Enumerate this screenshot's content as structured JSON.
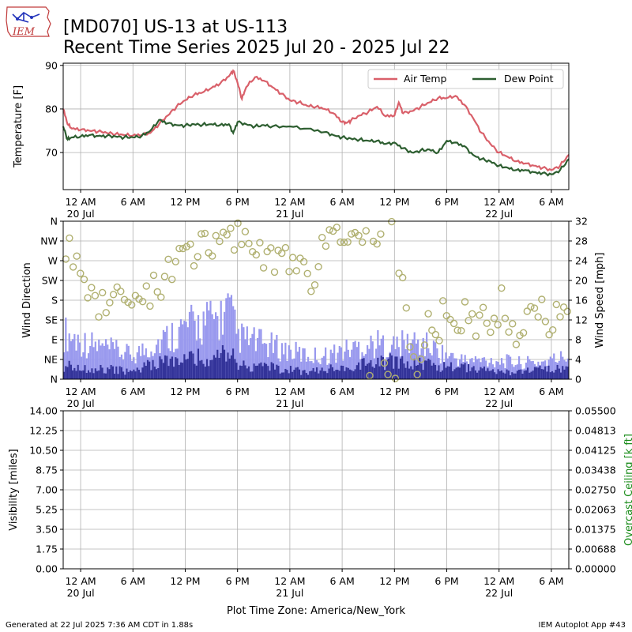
{
  "header": {
    "logo_text": "IEM",
    "title_line1": "[MD070] US-13 at US-113",
    "title_line2": "Recent Time Series 2025 Jul 20 - 2025 Jul 22"
  },
  "footer": {
    "left": "Generated at 22 Jul 2025 7:36 AM CDT in 1.88s",
    "right": "IEM Autoplot App #43"
  },
  "xaxis": {
    "label": "Plot Time Zone: America/New_York",
    "range_hours": [
      -2,
      56
    ],
    "ticks": [
      {
        "h": 0,
        "label": "12 AM",
        "date": "20 Jul"
      },
      {
        "h": 6,
        "label": "6 AM",
        "date": ""
      },
      {
        "h": 12,
        "label": "12 PM",
        "date": ""
      },
      {
        "h": 18,
        "label": "6 PM",
        "date": ""
      },
      {
        "h": 24,
        "label": "12 AM",
        "date": "21 Jul"
      },
      {
        "h": 30,
        "label": "6 AM",
        "date": ""
      },
      {
        "h": 36,
        "label": "12 PM",
        "date": ""
      },
      {
        "h": 42,
        "label": "6 PM",
        "date": ""
      },
      {
        "h": 48,
        "label": "12 AM",
        "date": "22 Jul"
      },
      {
        "h": 54,
        "label": "6 AM",
        "date": ""
      }
    ]
  },
  "chart_data": [
    {
      "type": "line",
      "ylabel": "Temperature [F]",
      "ylim": [
        61.5,
        90.5
      ],
      "yticks": [
        "70",
        "80",
        "90"
      ],
      "legend": "top-right",
      "grid": true,
      "series": [
        {
          "name": "Air Temp",
          "color": "#d9606a",
          "points": [
            [
              -2,
              80
            ],
            [
              -1.5,
              76.5
            ],
            [
              -1,
              75.5
            ],
            [
              0,
              75.2
            ],
            [
              1,
              75
            ],
            [
              2,
              74.8
            ],
            [
              3,
              74.5
            ],
            [
              4,
              74.2
            ],
            [
              5,
              74
            ],
            [
              6,
              73.9
            ],
            [
              7,
              74
            ],
            [
              8,
              74.5
            ],
            [
              9,
              76.5
            ],
            [
              10,
              78.5
            ],
            [
              11,
              80.5
            ],
            [
              12,
              82
            ],
            [
              13,
              83.2
            ],
            [
              14,
              83.8
            ],
            [
              15,
              84.8
            ],
            [
              16,
              85.8
            ],
            [
              17,
              87.5
            ],
            [
              17.5,
              88.8
            ],
            [
              18,
              86
            ],
            [
              18.5,
              82.3
            ],
            [
              19,
              85
            ],
            [
              20,
              87.3
            ],
            [
              21,
              86.5
            ],
            [
              22,
              85
            ],
            [
              23,
              83.5
            ],
            [
              24,
              82
            ],
            [
              25,
              81.5
            ],
            [
              26,
              80.7
            ],
            [
              27,
              80.5
            ],
            [
              28,
              80
            ],
            [
              29,
              79
            ],
            [
              30,
              77
            ],
            [
              30.5,
              76.8
            ],
            [
              31,
              77.3
            ],
            [
              32,
              78.5
            ],
            [
              33,
              79.3
            ],
            [
              34,
              80.5
            ],
            [
              35,
              78.3
            ],
            [
              36,
              78.5
            ],
            [
              36.5,
              81.5
            ],
            [
              37,
              79
            ],
            [
              38,
              79.5
            ],
            [
              39,
              80.5
            ],
            [
              40,
              81.5
            ],
            [
              41,
              82.5
            ],
            [
              42,
              82.5
            ],
            [
              43,
              83
            ],
            [
              44,
              81
            ],
            [
              45,
              78
            ],
            [
              46,
              74.5
            ],
            [
              47,
              72
            ],
            [
              48,
              70
            ],
            [
              49,
              69
            ],
            [
              50,
              68
            ],
            [
              51,
              67.5
            ],
            [
              52,
              67
            ],
            [
              53,
              66.5
            ],
            [
              54,
              66
            ],
            [
              55,
              67
            ],
            [
              56,
              69.5
            ]
          ]
        },
        {
          "name": "Dew Point",
          "color": "#2d5e30",
          "points": [
            [
              -2,
              76
            ],
            [
              -1.5,
              73
            ],
            [
              -1,
              73.5
            ],
            [
              0,
              73.7
            ],
            [
              1,
              74
            ],
            [
              2,
              73.8
            ],
            [
              3,
              73.8
            ],
            [
              4,
              73.7
            ],
            [
              5,
              73.5
            ],
            [
              6,
              73.5
            ],
            [
              7,
              73.8
            ],
            [
              8,
              75
            ],
            [
              9,
              77.5
            ],
            [
              10,
              76.7
            ],
            [
              11,
              76.3
            ],
            [
              12,
              76.2
            ],
            [
              13,
              76.5
            ],
            [
              14,
              76.4
            ],
            [
              15,
              76.5
            ],
            [
              16,
              76.3
            ],
            [
              17,
              76.5
            ],
            [
              17.5,
              74.5
            ],
            [
              18,
              77
            ],
            [
              19,
              76.5
            ],
            [
              20,
              76
            ],
            [
              21,
              76.3
            ],
            [
              22,
              76
            ],
            [
              24,
              76
            ],
            [
              26,
              75.5
            ],
            [
              28,
              74.7
            ],
            [
              29,
              74
            ],
            [
              30,
              73.5
            ],
            [
              31,
              73.2
            ],
            [
              32,
              73
            ],
            [
              33,
              72.7
            ],
            [
              34,
              72.7
            ],
            [
              35,
              72
            ],
            [
              36,
              72.3
            ],
            [
              37,
              71
            ],
            [
              38,
              70
            ],
            [
              39,
              70.5
            ],
            [
              40,
              70.7
            ],
            [
              41,
              70
            ],
            [
              42,
              72.7
            ],
            [
              43,
              72.3
            ],
            [
              44,
              71.5
            ],
            [
              45,
              69.5
            ],
            [
              46,
              68.5
            ],
            [
              47,
              68
            ],
            [
              48,
              67
            ],
            [
              49,
              66.5
            ],
            [
              50,
              66
            ],
            [
              51,
              66
            ],
            [
              52,
              65.5
            ],
            [
              53,
              65.3
            ],
            [
              54,
              65
            ],
            [
              55,
              66
            ],
            [
              56,
              68.5
            ]
          ]
        }
      ]
    },
    {
      "type": "bar",
      "ylabel": "Wind Direction",
      "y2label": "Wind Speed [mph]",
      "dir_ticks": [
        "N",
        "NE",
        "E",
        "SE",
        "S",
        "SW",
        "W",
        "NW",
        "N"
      ],
      "speed_ticks": [
        "0",
        "4",
        "8",
        "12",
        "16",
        "20",
        "24",
        "28",
        "32"
      ],
      "ylim_speed": [
        0,
        32
      ],
      "gust_color": "#9999ee",
      "speed_color": "#333399",
      "direction_marker_color": "#b0b070",
      "speed_profile_hours": [
        -2,
        0,
        4,
        6,
        8,
        10,
        12,
        14,
        16,
        17,
        18,
        20,
        22,
        24,
        26,
        28,
        30,
        32,
        34,
        36,
        38,
        40,
        42,
        44,
        46,
        48,
        50,
        52,
        54,
        56
      ],
      "speed_profile_mph": [
        3,
        2.5,
        2,
        1.5,
        3,
        4,
        4.5,
        5,
        4.5,
        6,
        3,
        3,
        2.5,
        2,
        1.5,
        2,
        2.5,
        3,
        3.5,
        4,
        3.5,
        3,
        2.5,
        2.5,
        2,
        1.5,
        1.5,
        2,
        2,
        2.5
      ],
      "gust_profile_mph": [
        10,
        8,
        6,
        5,
        7,
        9,
        11,
        12,
        13,
        15,
        9,
        8,
        7,
        6,
        5,
        5,
        6,
        7,
        7.5,
        7,
        8,
        7,
        5,
        4,
        4,
        4,
        3.5,
        3.5,
        4,
        5
      ],
      "direction_cluster_deg": [
        [
          -2,
          330
        ],
        [
          2,
          180
        ],
        [
          4,
          170
        ],
        [
          6,
          160
        ],
        [
          8,
          210
        ],
        [
          10,
          240
        ],
        [
          12,
          270
        ],
        [
          14,
          300
        ],
        [
          16,
          310
        ],
        [
          18,
          320
        ],
        [
          20,
          300
        ],
        [
          22,
          290
        ],
        [
          24,
          250
        ],
        [
          26,
          220
        ],
        [
          28,
          290
        ],
        [
          30,
          330
        ],
        [
          32,
          345
        ],
        [
          34,
          350
        ],
        [
          36,
          355
        ],
        [
          38,
          20
        ],
        [
          40,
          120
        ],
        [
          42,
          140
        ],
        [
          44,
          150
        ],
        [
          46,
          120
        ],
        [
          48,
          170
        ],
        [
          50,
          120
        ],
        [
          52,
          150
        ],
        [
          54,
          130
        ],
        [
          56,
          140
        ]
      ]
    },
    {
      "type": "line",
      "ylabel": "Visibility [miles]",
      "y2label": "Overcast Ceiling [k ft]",
      "yticks": [
        "0.00",
        "1.75",
        "3.50",
        "5.25",
        "7.00",
        "8.75",
        "10.50",
        "12.25",
        "14.00"
      ],
      "y2ticks": [
        "0.00000",
        "0.00688",
        "0.01375",
        "0.02063",
        "0.02750",
        "0.03438",
        "0.04125",
        "0.04813",
        "0.05500"
      ],
      "y2label_color": "#1a8c1a",
      "series": []
    }
  ]
}
